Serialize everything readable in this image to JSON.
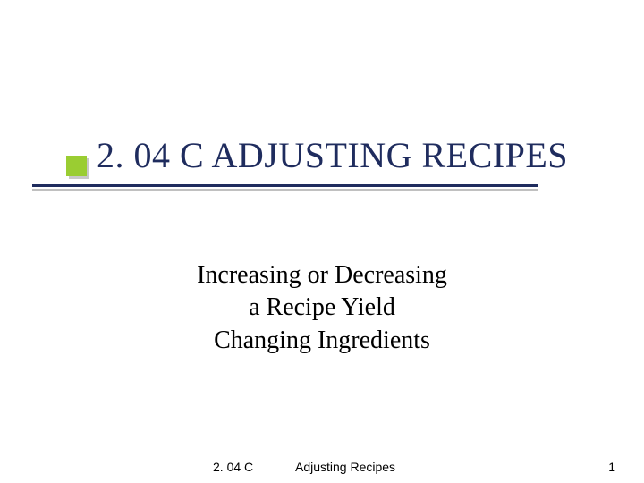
{
  "slide": {
    "title": "2. 04 C ADJUSTING RECIPES",
    "title_color": "#1f2c5e",
    "title_fontsize": 40,
    "subtitle_lines": [
      "Increasing or Decreasing",
      "a Recipe Yield",
      "Changing Ingredients"
    ],
    "subtitle_fontsize": 28,
    "subtitle_color": "#000000",
    "accent_square_color": "#9acd32",
    "rule_color_top": "#1f2c5e",
    "rule_color_bottom": "#c0c0c0",
    "background_color": "#ffffff"
  },
  "footer": {
    "left": "2. 04 C",
    "center": "Adjusting Recipes",
    "page_number": "1",
    "fontsize": 14
  }
}
